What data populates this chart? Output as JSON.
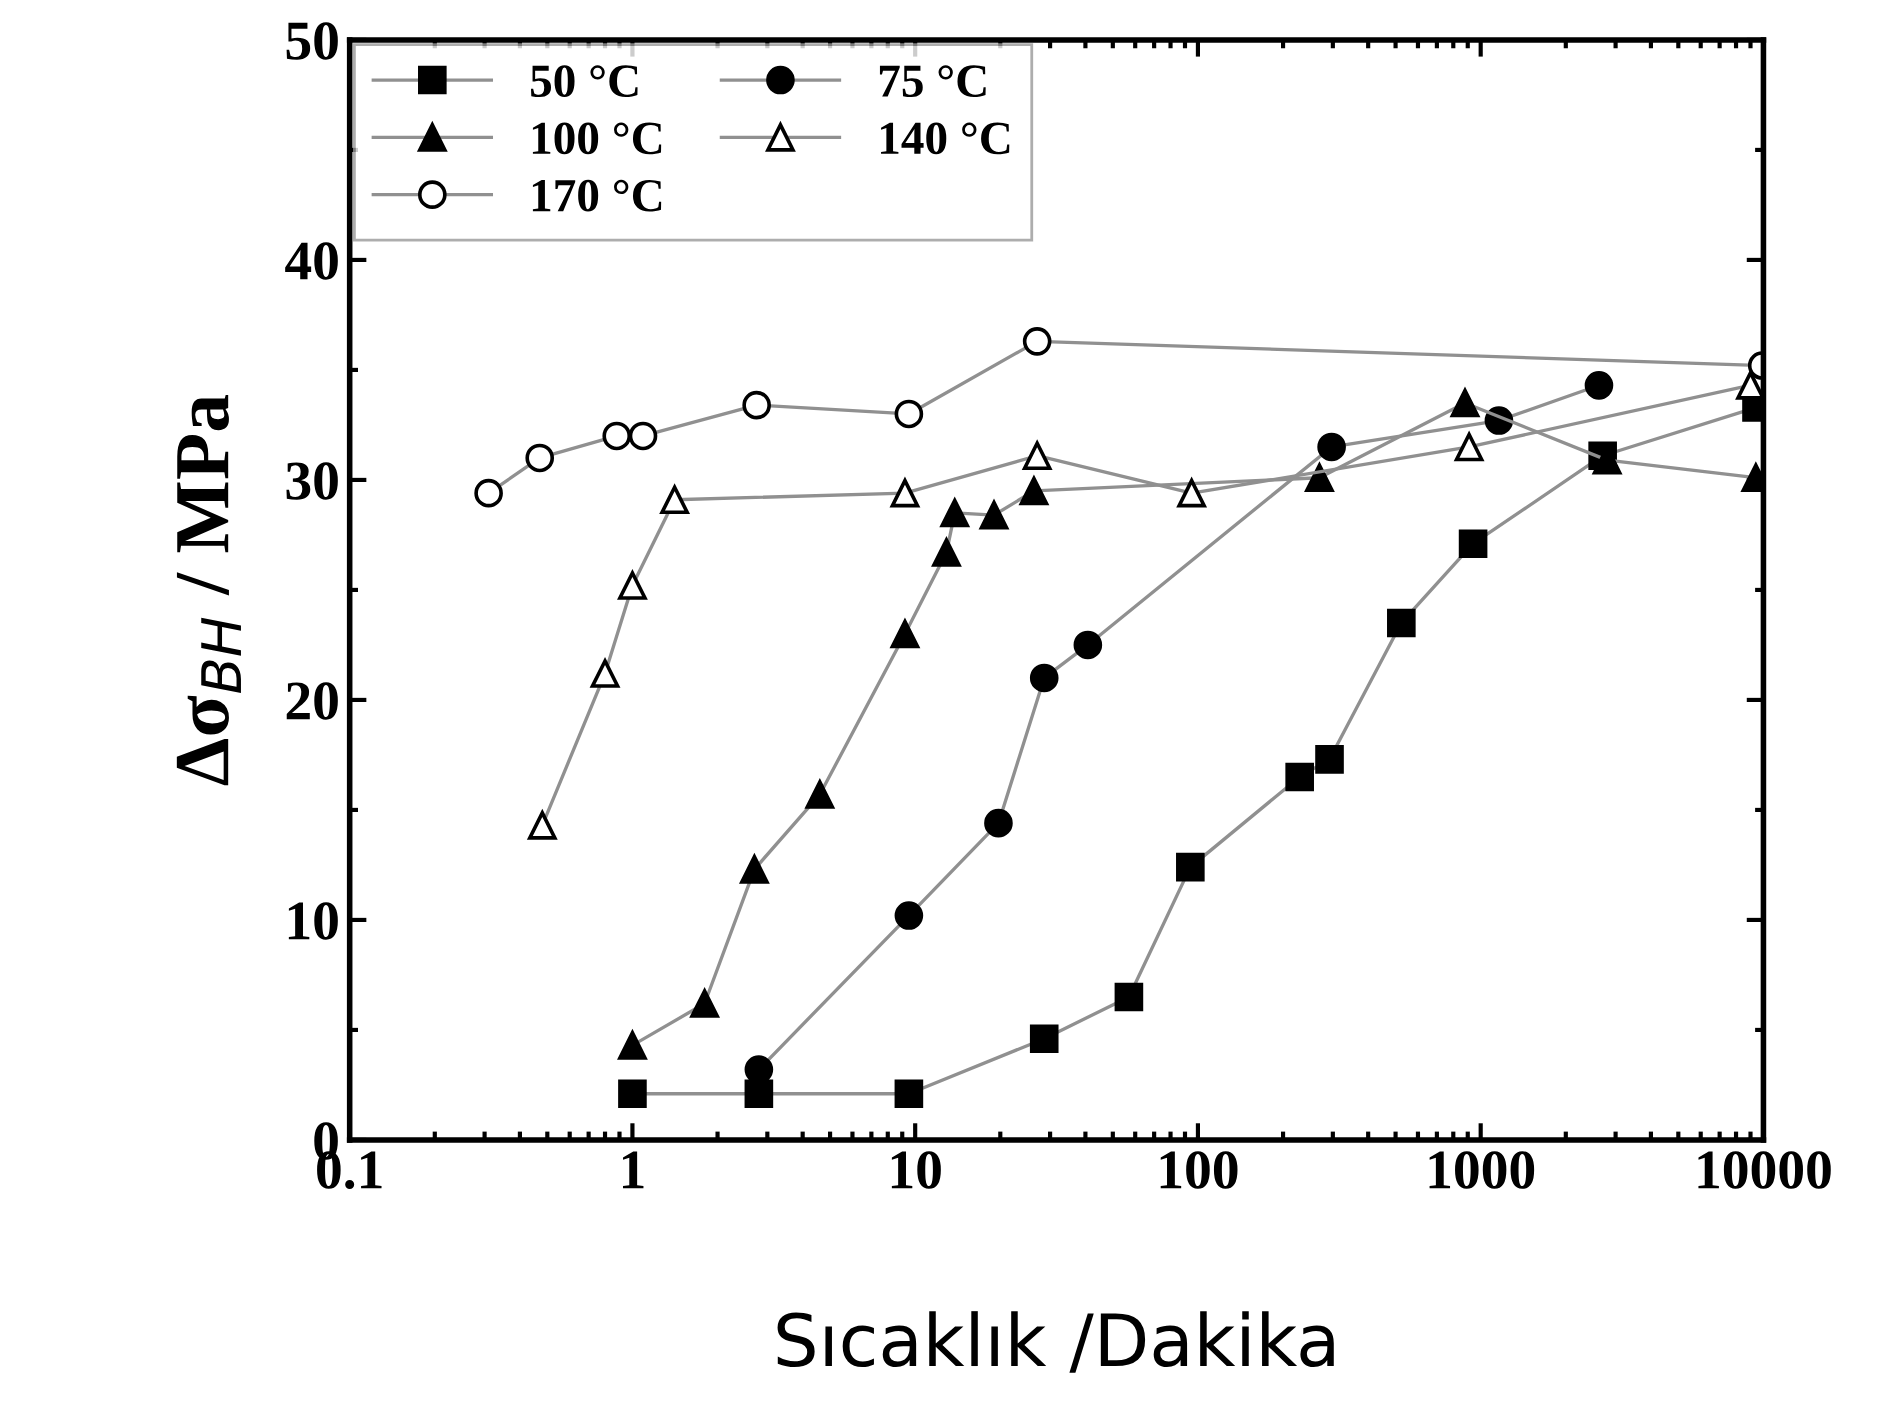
{
  "chart_data": {
    "type": "line",
    "xlabel": "Sıcaklık /Dakika",
    "ylabel": "Δσ$_{BH}$ / MPa",
    "log": "x",
    "xlim": [
      0.1,
      10000
    ],
    "xticks": [
      0.1,
      1,
      10,
      100,
      1000,
      10000
    ],
    "ylim": [
      0,
      50
    ],
    "yticks": [
      0,
      10,
      20,
      30,
      40,
      50
    ],
    "grid": false,
    "legend": "top left",
    "series": [
      {
        "name": "50 °C",
        "color": "#000000",
        "marker": "square",
        "x": [
          1,
          2.8,
          9.5,
          28.6,
          57,
          94,
          229,
          292,
          524,
          940,
          2700,
          9450
        ],
        "values": [
          2.1,
          2.1,
          2.1,
          4.6,
          6.5,
          12.4,
          16.5,
          17.3,
          23.5,
          27.1,
          31.1,
          33.3
        ]
      },
      {
        "name": "75 °C",
        "color": "#000000",
        "marker": "circle",
        "x": [
          2.8,
          9.5,
          19.7,
          28.6,
          40.8,
          297,
          1160,
          2620
        ],
        "values": [
          3.2,
          10.2,
          14.4,
          21,
          22.5,
          31.5,
          32.7,
          34.3
        ]
      },
      {
        "name": "100 °C",
        "color": "#000000",
        "marker": "triangle",
        "x": [
          1,
          1.8,
          2.7,
          4.6,
          9.2,
          12.9,
          13.8,
          19,
          26.3,
          269,
          880,
          2800,
          9400
        ],
        "values": [
          4.3,
          6.2,
          12.3,
          15.7,
          23,
          26.7,
          28.5,
          28.4,
          29.5,
          30.1,
          33.5,
          30.9,
          30.1
        ]
      },
      {
        "name": "140 °C",
        "color": "#ffffff",
        "marker": "triangle",
        "x": [
          0.48,
          0.8,
          1,
          1.41,
          9.2,
          27,
          95,
          910,
          9000
        ],
        "values": [
          14.3,
          21.2,
          25.2,
          29.1,
          29.4,
          31.1,
          29.4,
          31.5,
          34.3
        ]
      },
      {
        "name": "170 °C",
        "color": "#ffffff",
        "marker": "circle",
        "x": [
          0.31,
          0.47,
          0.88,
          1.09,
          2.75,
          9.5,
          27,
          9900
        ],
        "values": [
          29.4,
          31,
          32,
          32,
          33.4,
          33,
          36.3,
          35.2
        ]
      }
    ]
  }
}
